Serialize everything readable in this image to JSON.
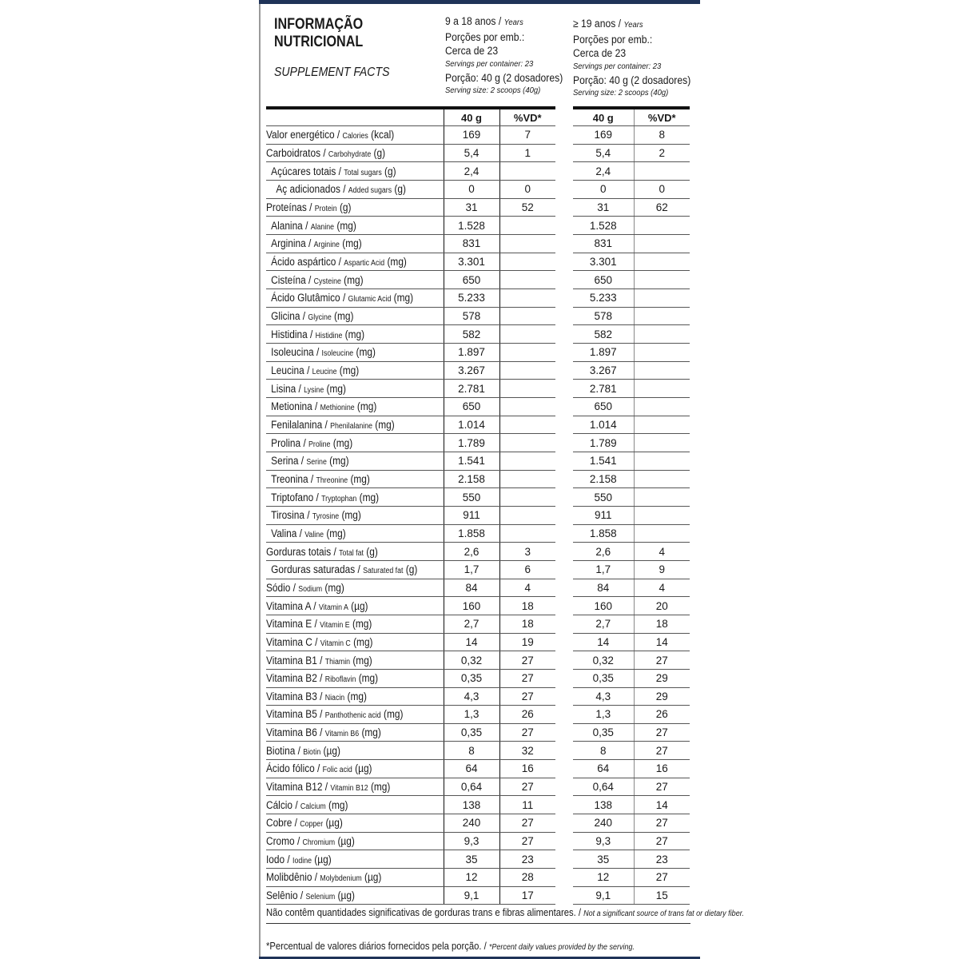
{
  "header": {
    "title_line1": "INFORMAÇÃO",
    "title_line2": "NUTRICIONAL",
    "subtitle": "SUPPLEMENT FACTS",
    "groups": [
      {
        "age_pt": "9 a 18 anos / ",
        "age_en": "Years",
        "servings_pt": "Porções por emb.:",
        "servings_value": "Cerca de 23",
        "servings_en": "Servings per container: 23",
        "portion_pt": "Porção: 40 g (2 dosadores)",
        "portion_en": "Serving size: 2 scoops (40g)"
      },
      {
        "age_pt": "≥ 19 anos / ",
        "age_en": "Years",
        "servings_pt": "Porções por emb.:",
        "servings_value": "Cerca de 23",
        "servings_en": "Servings per container: 23",
        "portion_pt": "Porção: 40 g (2 dosadores)",
        "portion_en": "Serving size: 2 scoops (40g)"
      }
    ]
  },
  "columns": {
    "amount": "40 g",
    "dv": "%VD*"
  },
  "rows": [
    {
      "pt": "Valor energético / ",
      "en": "Calories",
      "unit": " (kcal)",
      "indent": 0,
      "v1": "169",
      "d1": "7",
      "v2": "169",
      "d2": "8"
    },
    {
      "pt": "Carboidratos / ",
      "en": "Carbohydrate",
      "unit": " (g)",
      "indent": 0,
      "v1": "5,4",
      "d1": "1",
      "v2": "5,4",
      "d2": "2"
    },
    {
      "pt": "Açúcares totais / ",
      "en": "Total sugars",
      "unit": " (g)",
      "indent": 1,
      "v1": "2,4",
      "d1": "",
      "v2": "2,4",
      "d2": ""
    },
    {
      "pt": "Aç adicionados / ",
      "en": "Added sugars",
      "unit": " (g)",
      "indent": 2,
      "v1": "0",
      "d1": "0",
      "v2": "0",
      "d2": "0"
    },
    {
      "pt": "Proteínas / ",
      "en": "Protein",
      "unit": " (g)",
      "indent": 0,
      "v1": "31",
      "d1": "52",
      "v2": "31",
      "d2": "62"
    },
    {
      "pt": "Alanina / ",
      "en": "Alanine",
      "unit": " (mg)",
      "indent": 1,
      "v1": "1.528",
      "d1": "",
      "v2": "1.528",
      "d2": ""
    },
    {
      "pt": "Arginina / ",
      "en": "Arginine",
      "unit": " (mg)",
      "indent": 1,
      "v1": "831",
      "d1": "",
      "v2": "831",
      "d2": ""
    },
    {
      "pt": "Ácido aspártico / ",
      "en": "Aspartic Acid",
      "unit": " (mg)",
      "indent": 1,
      "v1": "3.301",
      "d1": "",
      "v2": "3.301",
      "d2": ""
    },
    {
      "pt": "Cisteína / ",
      "en": "Cysteine",
      "unit": " (mg)",
      "indent": 1,
      "v1": "650",
      "d1": "",
      "v2": "650",
      "d2": ""
    },
    {
      "pt": "Ácido Glutâmico / ",
      "en": "Glutamic Acid",
      "unit": " (mg)",
      "indent": 1,
      "v1": "5.233",
      "d1": "",
      "v2": "5.233",
      "d2": ""
    },
    {
      "pt": "Glicina / ",
      "en": "Glycine",
      "unit": " (mg)",
      "indent": 1,
      "v1": "578",
      "d1": "",
      "v2": "578",
      "d2": ""
    },
    {
      "pt": "Histidina / ",
      "en": "Histidine",
      "unit": " (mg)",
      "indent": 1,
      "v1": "582",
      "d1": "",
      "v2": "582",
      "d2": ""
    },
    {
      "pt": "Isoleucina / ",
      "en": "Isoleucine",
      "unit": " (mg)",
      "indent": 1,
      "v1": "1.897",
      "d1": "",
      "v2": "1.897",
      "d2": ""
    },
    {
      "pt": "Leucina / ",
      "en": "Leucine",
      "unit": " (mg)",
      "indent": 1,
      "v1": "3.267",
      "d1": "",
      "v2": "3.267",
      "d2": ""
    },
    {
      "pt": "Lisina / ",
      "en": "Lysine",
      "unit": " (mg)",
      "indent": 1,
      "v1": "2.781",
      "d1": "",
      "v2": "2.781",
      "d2": ""
    },
    {
      "pt": "Metionina / ",
      "en": "Methionine",
      "unit": " (mg)",
      "indent": 1,
      "v1": "650",
      "d1": "",
      "v2": "650",
      "d2": ""
    },
    {
      "pt": "Fenilalanina / ",
      "en": "Phenilalanine",
      "unit": " (mg)",
      "indent": 1,
      "v1": "1.014",
      "d1": "",
      "v2": "1.014",
      "d2": ""
    },
    {
      "pt": "Prolina / ",
      "en": "Proline",
      "unit": " (mg)",
      "indent": 1,
      "v1": "1.789",
      "d1": "",
      "v2": "1.789",
      "d2": ""
    },
    {
      "pt": "Serina / ",
      "en": "Serine",
      "unit": " (mg)",
      "indent": 1,
      "v1": "1.541",
      "d1": "",
      "v2": "1.541",
      "d2": ""
    },
    {
      "pt": "Treonina / ",
      "en": "Threonine",
      "unit": " (mg)",
      "indent": 1,
      "v1": "2.158",
      "d1": "",
      "v2": "2.158",
      "d2": ""
    },
    {
      "pt": "Triptofano / ",
      "en": "Tryptophan",
      "unit": " (mg)",
      "indent": 1,
      "v1": "550",
      "d1": "",
      "v2": "550",
      "d2": ""
    },
    {
      "pt": "Tirosina / ",
      "en": "Tyrosine",
      "unit": " (mg)",
      "indent": 1,
      "v1": "911",
      "d1": "",
      "v2": "911",
      "d2": ""
    },
    {
      "pt": "Valina / ",
      "en": "Valine",
      "unit": " (mg)",
      "indent": 1,
      "v1": "1.858",
      "d1": "",
      "v2": "1.858",
      "d2": ""
    },
    {
      "pt": "Gorduras totais / ",
      "en": "Total fat",
      "unit": " (g)",
      "indent": 0,
      "v1": "2,6",
      "d1": "3",
      "v2": "2,6",
      "d2": "4"
    },
    {
      "pt": "Gorduras saturadas / ",
      "en": "Saturated fat",
      "unit": " (g)",
      "indent": 1,
      "v1": "1,7",
      "d1": "6",
      "v2": "1,7",
      "d2": "9"
    },
    {
      "pt": "Sódio / ",
      "en": "Sodium",
      "unit": " (mg)",
      "indent": 0,
      "v1": "84",
      "d1": "4",
      "v2": "84",
      "d2": "4"
    },
    {
      "pt": "Vitamina A / ",
      "en": "Vitamin A",
      "unit": " (µg)",
      "indent": 0,
      "v1": "160",
      "d1": "18",
      "v2": "160",
      "d2": "20"
    },
    {
      "pt": "Vitamina E / ",
      "en": "Vitamin E",
      "unit": " (mg)",
      "indent": 0,
      "v1": "2,7",
      "d1": "18",
      "v2": "2,7",
      "d2": "18"
    },
    {
      "pt": "Vitamina C / ",
      "en": "Vitamin C",
      "unit": " (mg)",
      "indent": 0,
      "v1": "14",
      "d1": "19",
      "v2": "14",
      "d2": "14"
    },
    {
      "pt": "Vitamina B1 / ",
      "en": "Thiamin",
      "unit": " (mg)",
      "indent": 0,
      "v1": "0,32",
      "d1": "27",
      "v2": "0,32",
      "d2": "27"
    },
    {
      "pt": "Vitamina B2 / ",
      "en": "Riboflavin",
      "unit": " (mg)",
      "indent": 0,
      "v1": "0,35",
      "d1": "27",
      "v2": "0,35",
      "d2": "29"
    },
    {
      "pt": "Vitamina B3 / ",
      "en": "Niacin",
      "unit": " (mg)",
      "indent": 0,
      "v1": "4,3",
      "d1": "27",
      "v2": "4,3",
      "d2": "29"
    },
    {
      "pt": "Vitamina B5 / ",
      "en": "Panthothenic acid",
      "unit": " (mg)",
      "indent": 0,
      "v1": "1,3",
      "d1": "26",
      "v2": "1,3",
      "d2": "26"
    },
    {
      "pt": "Vitamina B6 / ",
      "en": "Vitamin B6",
      "unit": " (mg)",
      "indent": 0,
      "v1": "0,35",
      "d1": "27",
      "v2": "0,35",
      "d2": "27"
    },
    {
      "pt": "Biotina / ",
      "en": "Biotin",
      "unit": " (µg)",
      "indent": 0,
      "v1": "8",
      "d1": "32",
      "v2": "8",
      "d2": "27"
    },
    {
      "pt": "Ácido fólico / ",
      "en": "Folic acid",
      "unit": " (µg)",
      "indent": 0,
      "v1": "64",
      "d1": "16",
      "v2": "64",
      "d2": "16"
    },
    {
      "pt": "Vitamina B12 / ",
      "en": "Vitamin B12",
      "unit": " (mg)",
      "indent": 0,
      "v1": "0,64",
      "d1": "27",
      "v2": "0,64",
      "d2": "27"
    },
    {
      "pt": "Cálcio / ",
      "en": "Calcium",
      "unit": " (mg)",
      "indent": 0,
      "v1": "138",
      "d1": "11",
      "v2": "138",
      "d2": "14"
    },
    {
      "pt": "Cobre / ",
      "en": "Copper",
      "unit": " (µg)",
      "indent": 0,
      "v1": "240",
      "d1": "27",
      "v2": "240",
      "d2": "27"
    },
    {
      "pt": "Cromo / ",
      "en": "Chromium",
      "unit": " (µg)",
      "indent": 0,
      "v1": "9,3",
      "d1": "27",
      "v2": "9,3",
      "d2": "27"
    },
    {
      "pt": "Iodo / ",
      "en": "Iodine",
      "unit": " (µg)",
      "indent": 0,
      "v1": "35",
      "d1": "23",
      "v2": "35",
      "d2": "23"
    },
    {
      "pt": "Molibdênio / ",
      "en": "Molybdenium",
      "unit": " (µg)",
      "indent": 0,
      "v1": "12",
      "d1": "28",
      "v2": "12",
      "d2": "27"
    },
    {
      "pt": "Selênio / ",
      "en": "Selenium",
      "unit": " (µg)",
      "indent": 0,
      "v1": "9,1",
      "d1": "17",
      "v2": "9,1",
      "d2": "15"
    }
  ],
  "footer": {
    "note1_pt": "Não contêm quantidades significativas de gorduras trans e fibras alimentares. / ",
    "note1_en": "Not a significant source of trans fat or dietary fiber.",
    "note2_pt": "*Percentual de valores diários fornecidos pela porção. / ",
    "note2_en": "*Percent daily values provided by the serving."
  },
  "colors": {
    "border_bar": "#1f3358"
  }
}
